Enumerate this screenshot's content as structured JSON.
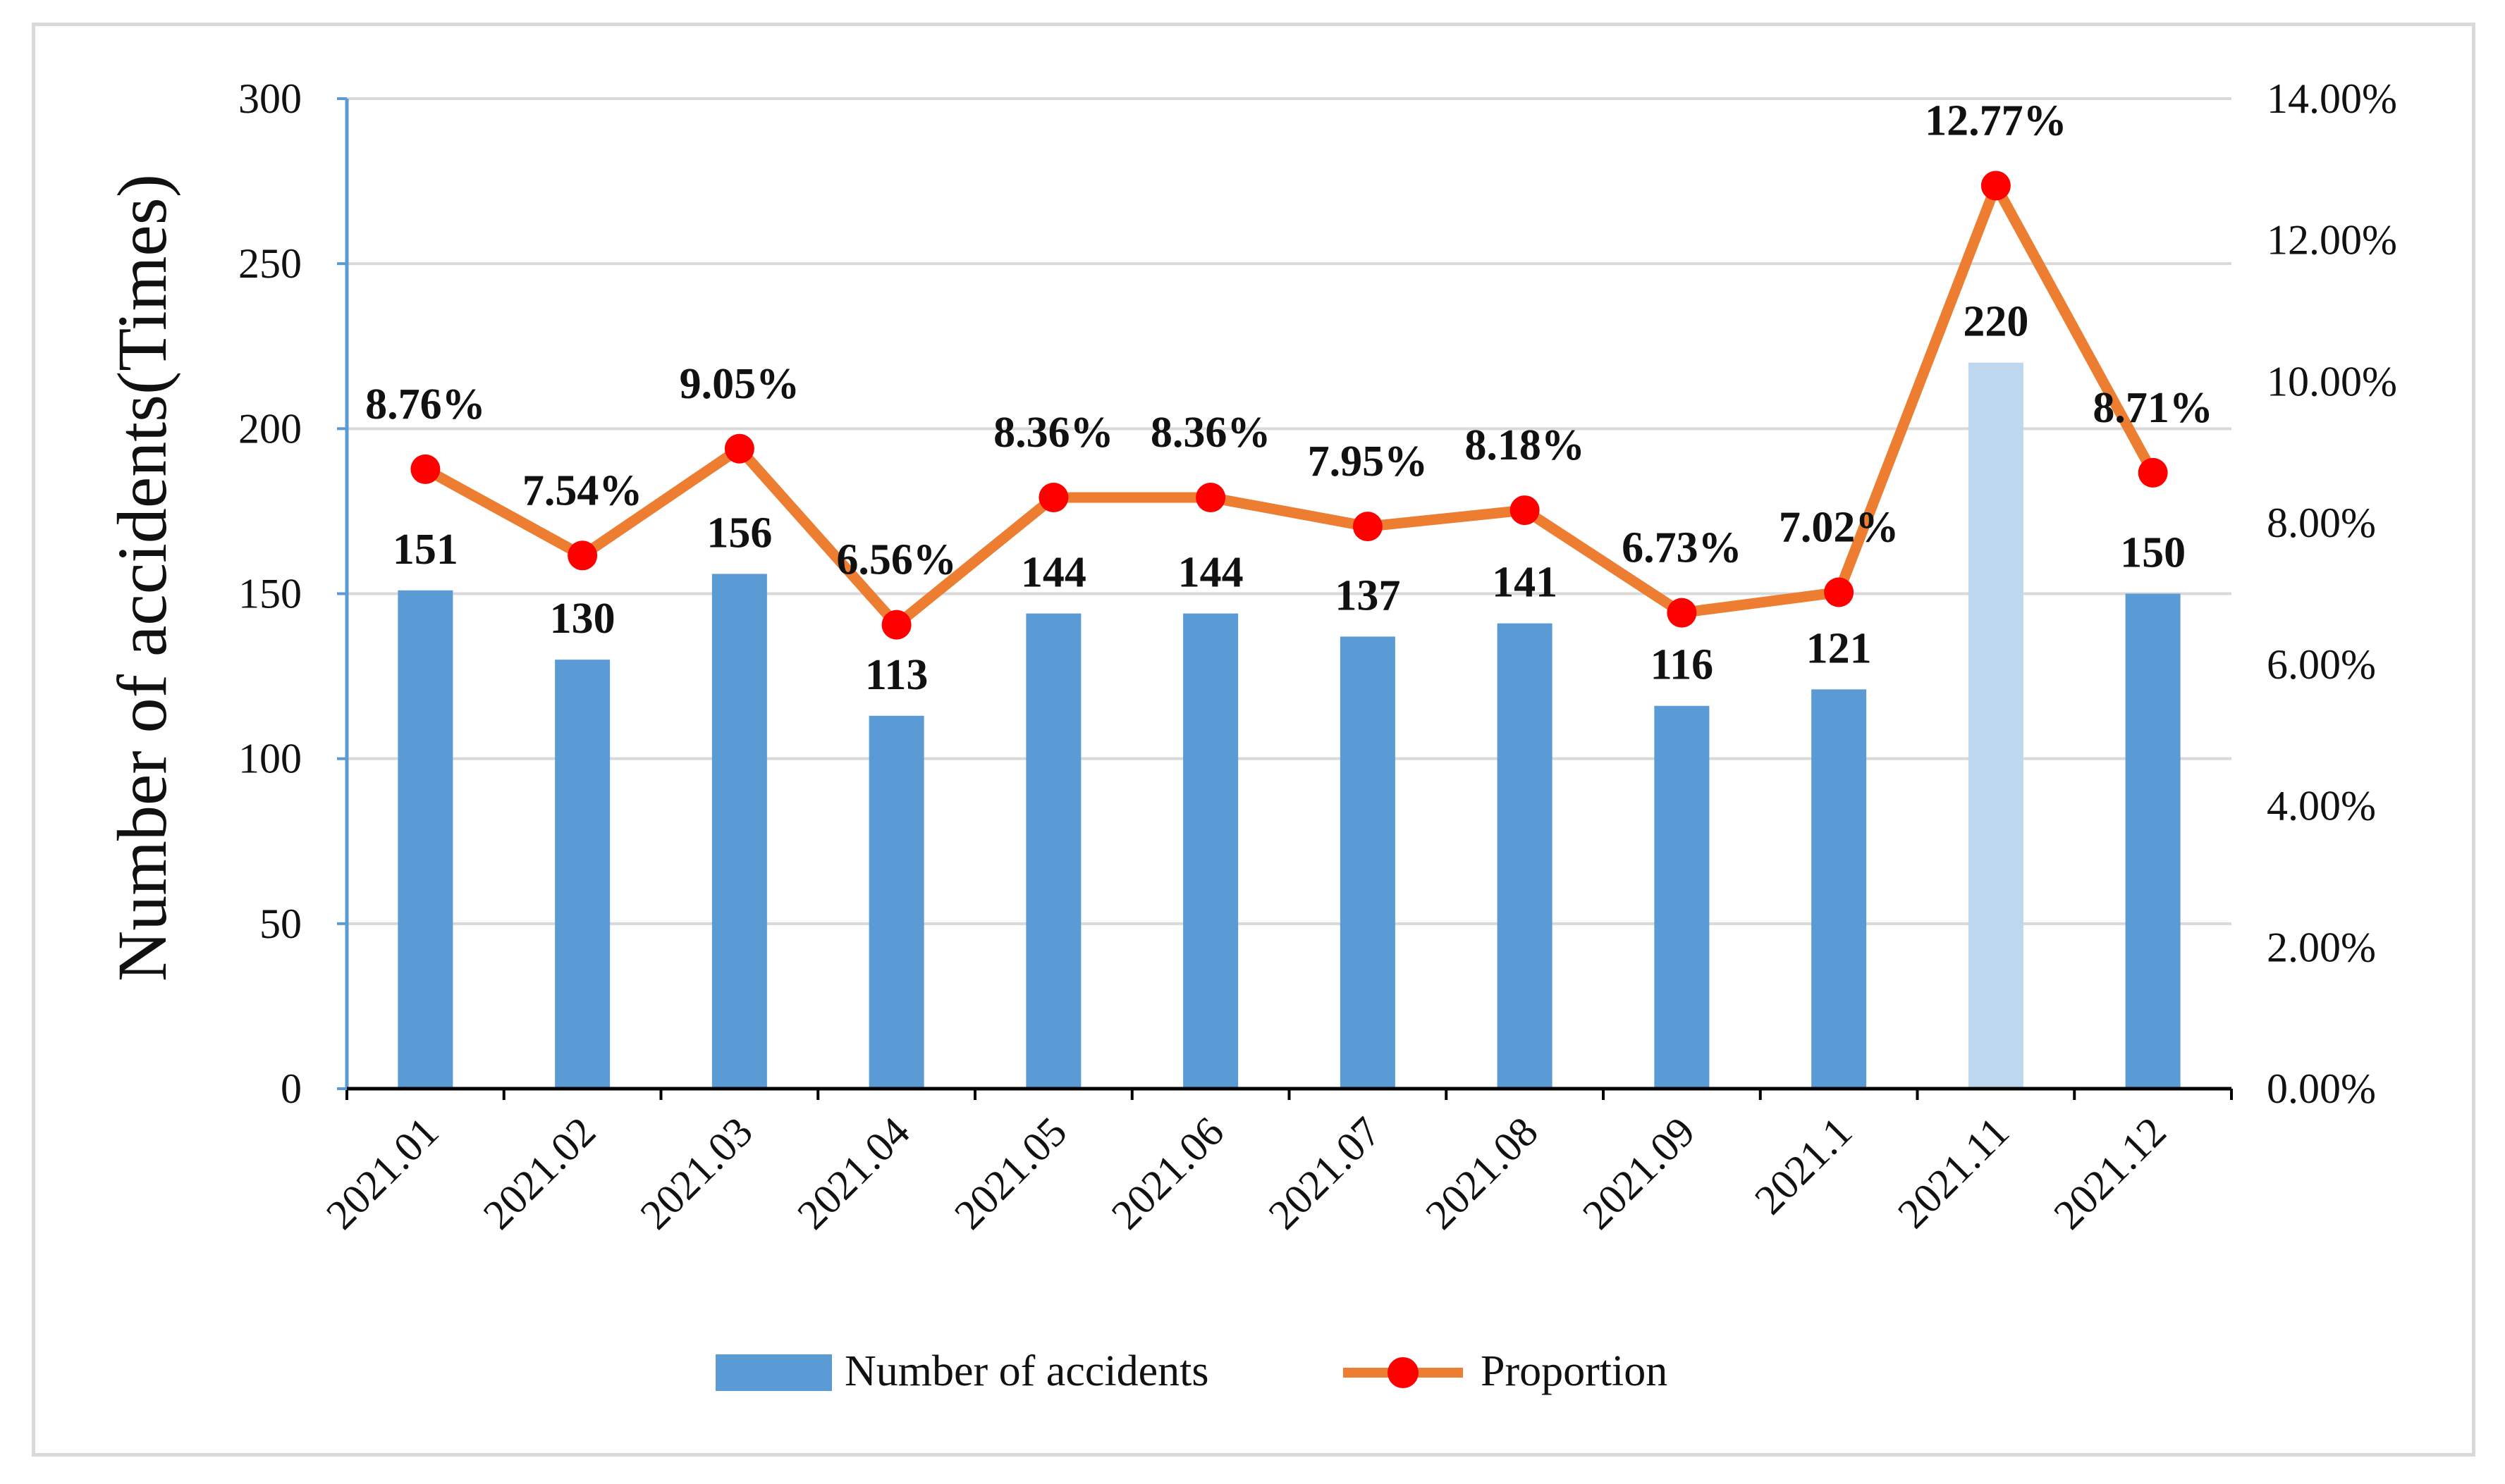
{
  "chart_data": {
    "type": "bar+line",
    "categories": [
      "2021.01",
      "2021.02",
      "2021.03",
      "2021.04",
      "2021.05",
      "2021.06",
      "2021.07",
      "2021.08",
      "2021.09",
      "2021.1",
      "2021.11",
      "2021.12"
    ],
    "series": [
      {
        "name": "Number of accidents",
        "type": "bar",
        "axis": "left",
        "values": [
          151,
          130,
          156,
          113,
          144,
          144,
          137,
          141,
          116,
          121,
          220,
          150
        ],
        "labels": [
          "151",
          "130",
          "156",
          "113",
          "144",
          "144",
          "137",
          "141",
          "116",
          "121",
          "220",
          "150"
        ],
        "color": "#5b9bd5",
        "highlight_index": 10,
        "highlight_color": "#bdd7ee"
      },
      {
        "name": "Proportion",
        "type": "line",
        "axis": "right",
        "values": [
          8.76,
          7.54,
          9.05,
          6.56,
          8.36,
          8.36,
          7.95,
          8.18,
          6.73,
          7.02,
          12.77,
          8.71
        ],
        "labels": [
          "8.76%",
          "7.54%",
          "9.05%",
          "6.56%",
          "8.36%",
          "8.36%",
          "7.95%",
          "8.18%",
          "6.73%",
          "7.02%",
          "12.77%",
          "8.71%"
        ],
        "line_color": "#ed7d31",
        "marker_color": "#ff0000"
      }
    ],
    "ylabel": "Number of accidents(Times)",
    "ylim": [
      0,
      300
    ],
    "y_ticks": [
      "0",
      "50",
      "100",
      "150",
      "200",
      "250",
      "300"
    ],
    "y2lim": [
      0,
      14
    ],
    "y2_ticks": [
      "0.00%",
      "2.00%",
      "4.00%",
      "6.00%",
      "8.00%",
      "10.00%",
      "12.00%",
      "14.00%"
    ],
    "grid": true,
    "legend_position": "bottom"
  }
}
